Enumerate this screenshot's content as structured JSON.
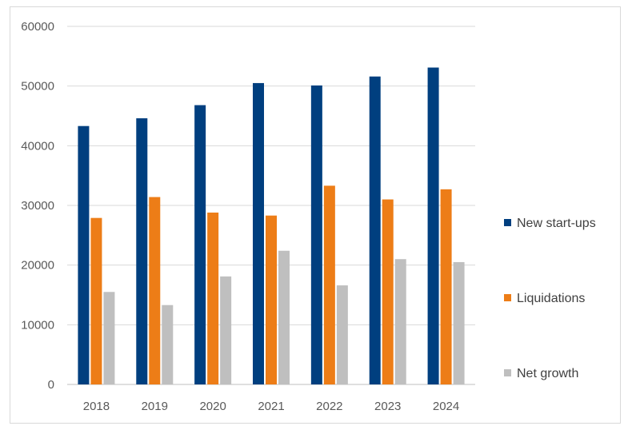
{
  "chart_data": {
    "type": "bar",
    "categories": [
      "2018",
      "2019",
      "2020",
      "2021",
      "2022",
      "2023",
      "2024"
    ],
    "series": [
      {
        "name": "New start-ups",
        "color": "#003f7f",
        "values": [
          43300,
          44600,
          46800,
          50500,
          50100,
          51600,
          53100
        ]
      },
      {
        "name": "Liquidations",
        "color": "#ed7d17",
        "values": [
          27900,
          31400,
          28800,
          28300,
          33300,
          31000,
          32700
        ]
      },
      {
        "name": "Net growth",
        "color": "#bfbfbf",
        "values": [
          15500,
          13300,
          18100,
          22400,
          16600,
          21000,
          20500
        ]
      }
    ],
    "ylim": [
      0,
      60000
    ],
    "yticks": [
      "0",
      "10000",
      "20000",
      "30000",
      "40000",
      "50000",
      "60000"
    ],
    "grid": true,
    "legend": "right"
  }
}
